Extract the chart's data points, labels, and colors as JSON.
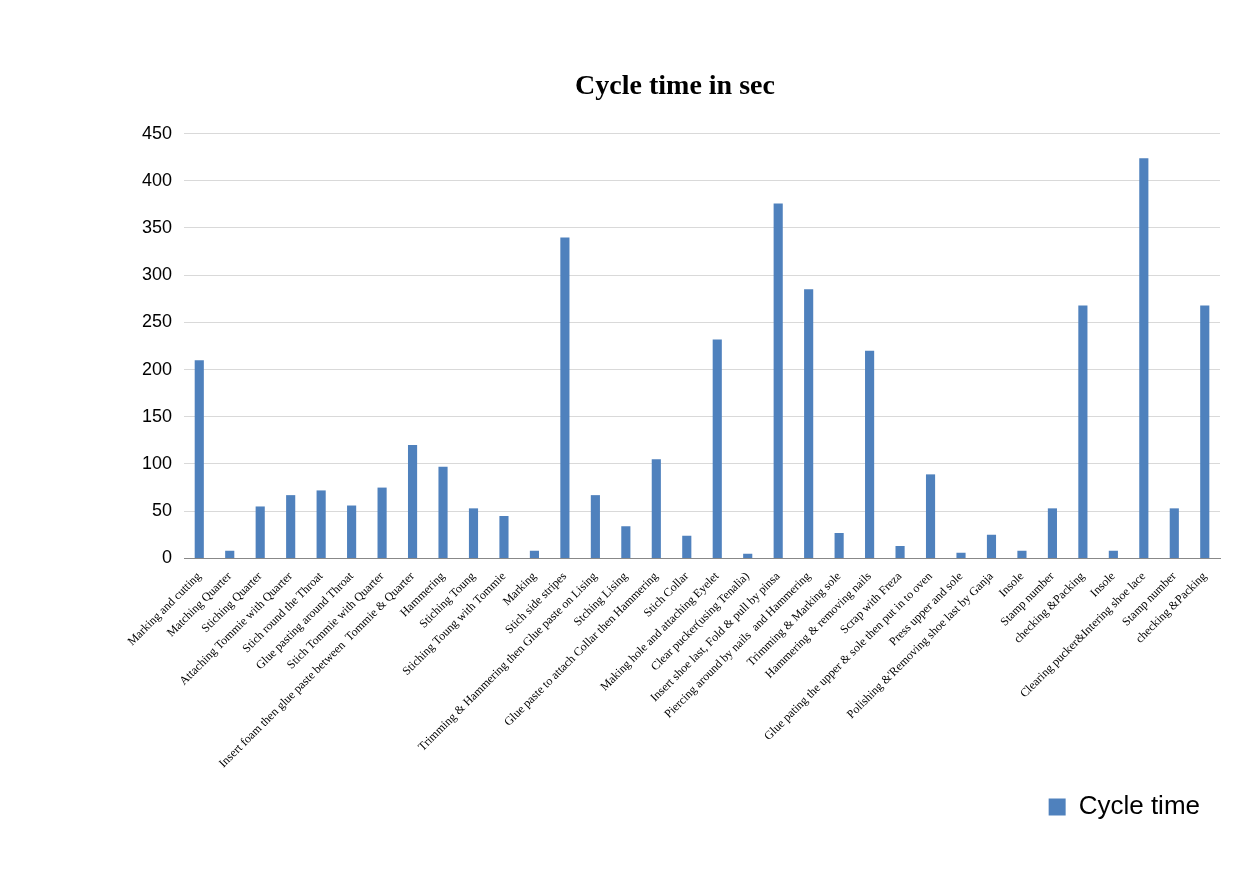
{
  "chart_data": {
    "type": "bar",
    "title": "Cycle time in sec",
    "categories": [
      "Marking and cutting",
      "Matching Quarter",
      "Stiching Quarter",
      "Attaching Tommie with Quarter",
      "Stich round the Throat",
      "Glue pasting around Throat",
      "Stich Tommie with Quarter",
      "Insert foam then glue paste between  Tommie & Quarter",
      "Hammering",
      "Stiching Toung",
      "Stiching Toung with Tommie",
      "Marking",
      "Stich side stripes",
      "Trimming & Hammering then Glue paste on Lising",
      "Stching Lising",
      "Glue paste to attach Collar then Hammering",
      "Stich Collar",
      "Making hole and attaching Eyelet",
      "Clear pucker(using Tenalia)",
      "Insert shoe last, Fold & pull by pinsa",
      "Piercing around by nails  and Hammering",
      "Trimming & Marking sole",
      "Hammering & removing nails",
      "Scrap with Freza",
      "Glue pating the upper & sole then put in to oven",
      "Press upper and sole",
      "Polishing &'Removing shoe last by Ganja",
      "Insole",
      "Stamp number",
      "checking &Packing",
      "Insole",
      "Clearing pucker&Intering shoe lace",
      "Stamp number",
      "checking &Packing"
    ],
    "series": [
      {
        "name": "Cycle time",
        "color": "#4f81bd",
        "values": [
          210,
          8,
          55,
          67,
          72,
          56,
          75,
          120,
          97,
          53,
          45,
          8,
          340,
          67,
          34,
          105,
          24,
          232,
          5,
          376,
          285,
          27,
          220,
          13,
          89,
          6,
          25,
          8,
          53,
          268,
          8,
          424,
          53,
          268
        ]
      }
    ],
    "ylim": [
      0,
      450
    ],
    "yticks": [
      0,
      50,
      100,
      150,
      200,
      250,
      300,
      350,
      400,
      450
    ],
    "grid": "y",
    "legend": "bottom right"
  }
}
